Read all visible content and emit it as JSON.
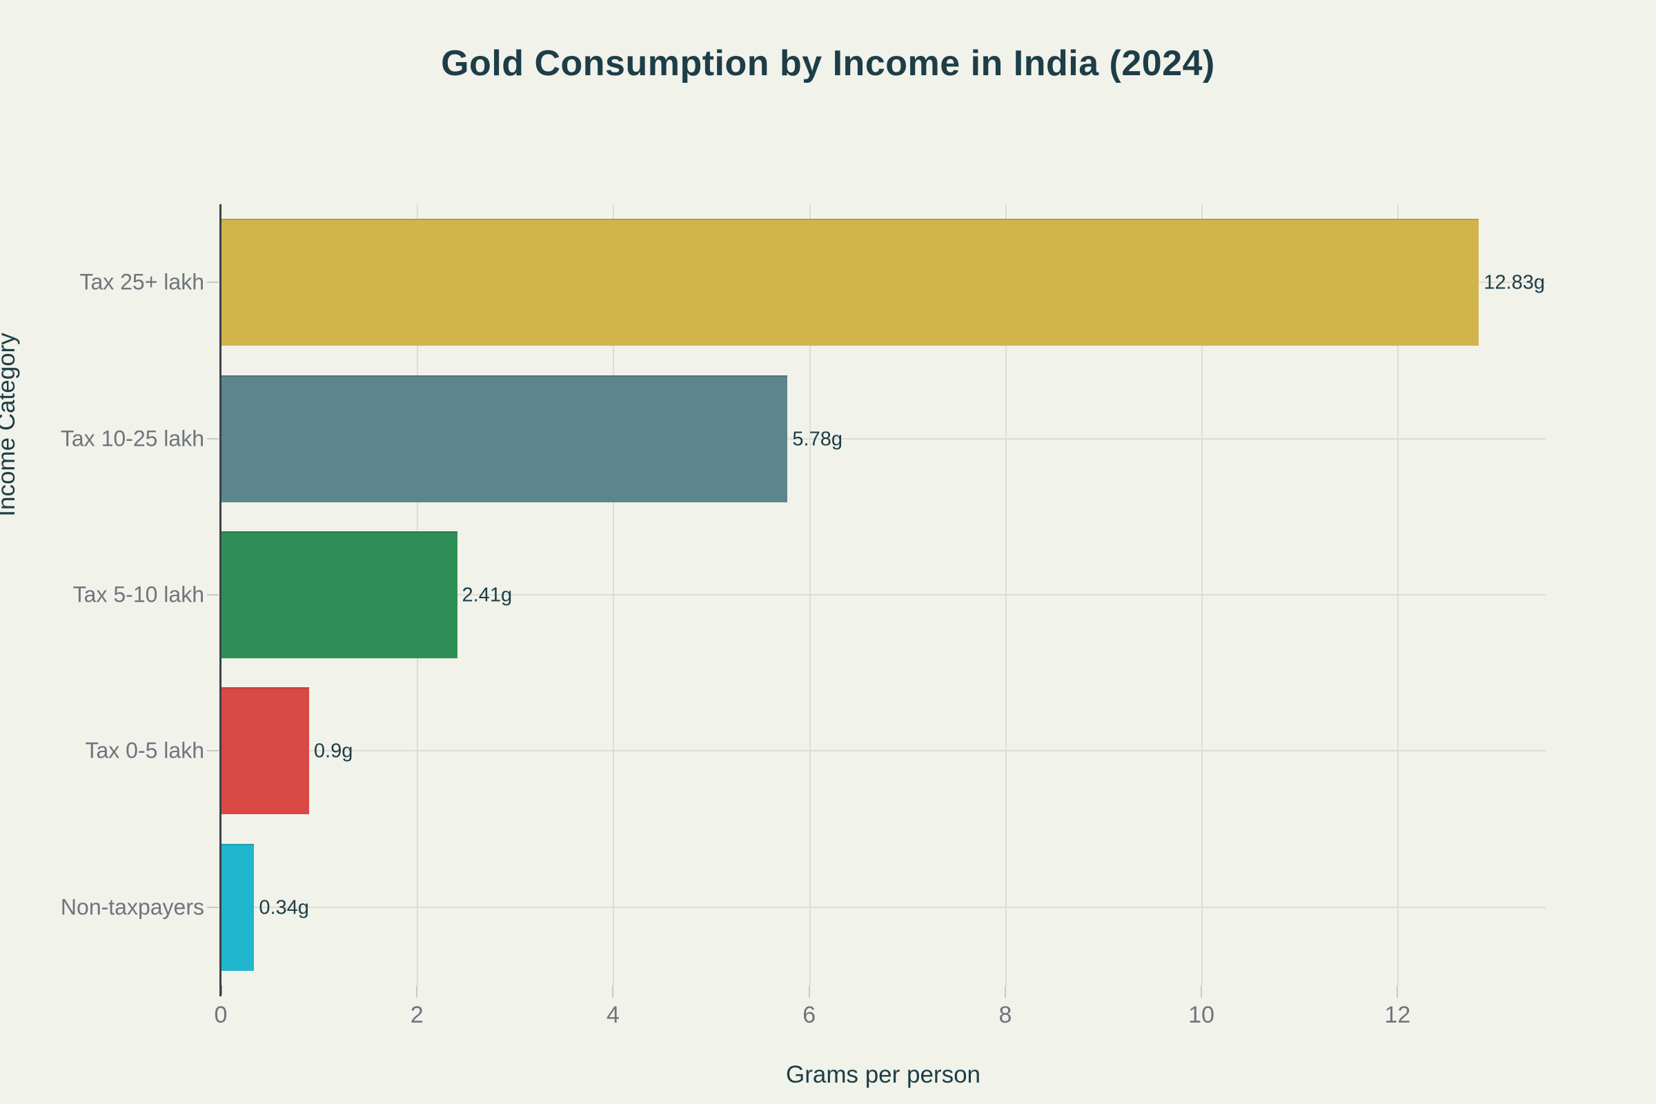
{
  "title": "Gold Consumption by Income in India (2024)",
  "chart_data": {
    "type": "bar",
    "orientation": "horizontal",
    "title": "Gold Consumption by Income in India (2024)",
    "xlabel": "Grams per person",
    "ylabel": "Income Category",
    "categories": [
      "Tax 25+ lakh",
      "Tax 10-25 lakh",
      "Tax 5-10 lakh",
      "Tax 0-5 lakh",
      "Non-taxpayers"
    ],
    "values": [
      12.83,
      5.78,
      2.41,
      0.9,
      0.34
    ],
    "value_labels": [
      "12.83g",
      "5.78g",
      "2.41g",
      "0.9g",
      "0.34g"
    ],
    "bar_colors": [
      "#d1b54a",
      "#5d858e",
      "#2e8f56",
      "#d84944",
      "#20b6ce"
    ],
    "xlim": [
      0,
      13.51
    ],
    "xticks": [
      0,
      2,
      4,
      6,
      8,
      10,
      12
    ],
    "grid": true,
    "legend": "none"
  },
  "colors": {
    "background": "#f1f2ea",
    "title_text": "#1d3d47",
    "axis_title_text": "#1d3d47",
    "tick_text": "#6f747d",
    "category_text": "#6f747d",
    "value_text": "#1d3d47",
    "gridline": "#dcddd5",
    "axis_spine": "#3c4148"
  }
}
